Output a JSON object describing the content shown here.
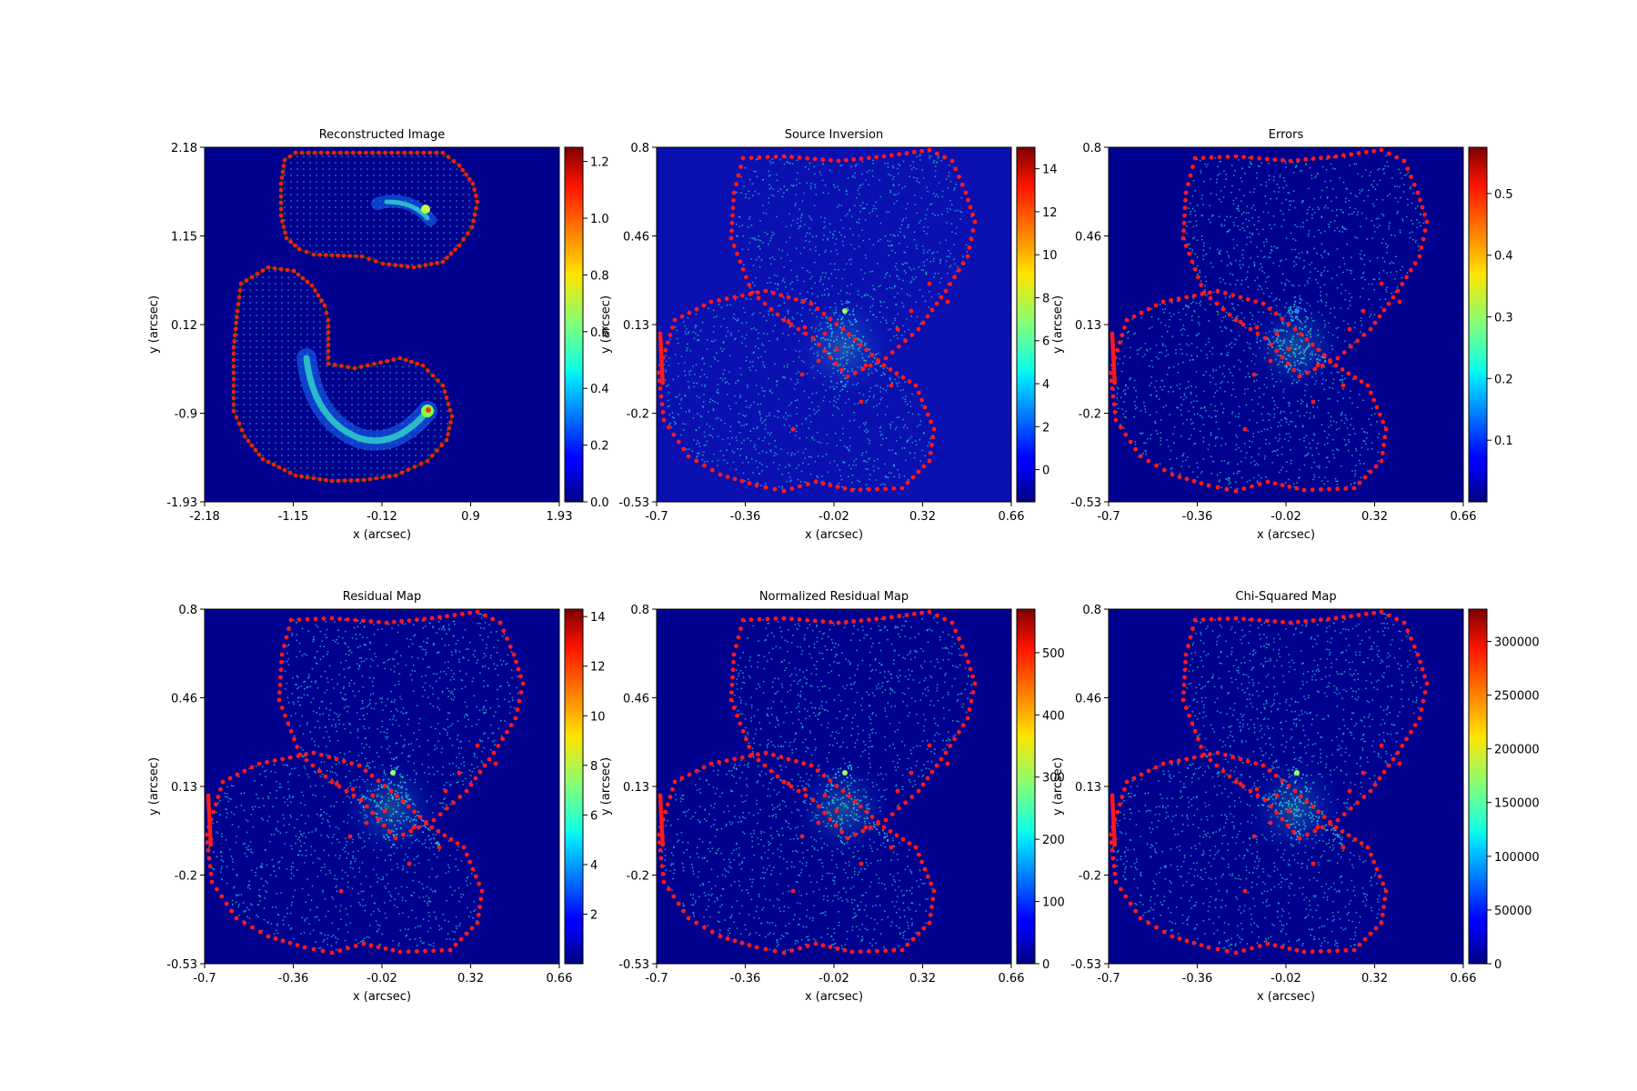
{
  "chart_data": [
    {
      "type": "heatmap",
      "title": "Reconstructed Image",
      "xlabel": "x (arcsec)",
      "ylabel": "y (arcsec)",
      "xticks": [
        "-2.18",
        "-1.15",
        "-0.12",
        "0.9",
        "1.93"
      ],
      "yticks": [
        "-1.93",
        "-0.9",
        "0.12",
        "1.15",
        "2.18"
      ],
      "xlim": [
        -2.18,
        1.93
      ],
      "ylim": [
        -1.93,
        2.18
      ],
      "colorbar": {
        "min": 0.0,
        "max": 1.25,
        "ticks": [
          "0.0",
          "0.2",
          "0.4",
          "0.6",
          "0.8",
          "1.0",
          "1.2"
        ]
      },
      "content": "arcs"
    },
    {
      "type": "heatmap",
      "title": "Source Inversion",
      "xlabel": "x (arcsec)",
      "ylabel": "y (arcsec)",
      "xticks": [
        "-0.7",
        "-0.36",
        "-0.02",
        "0.32",
        "0.66"
      ],
      "yticks": [
        "-0.53",
        "-0.2",
        "0.13",
        "0.46",
        "0.8"
      ],
      "xlim": [
        -0.7,
        0.66
      ],
      "ylim": [
        -0.53,
        0.8
      ],
      "colorbar": {
        "min": -1.5,
        "max": 15,
        "ticks": [
          "0",
          "2",
          "4",
          "6",
          "8",
          "10",
          "12",
          "14"
        ]
      },
      "content": "source"
    },
    {
      "type": "heatmap",
      "title": "Errors",
      "xlabel": "x (arcsec)",
      "ylabel": "y (arcsec)",
      "xticks": [
        "-0.7",
        "-0.36",
        "-0.02",
        "0.32",
        "0.66"
      ],
      "yticks": [
        "-0.53",
        "-0.2",
        "0.13",
        "0.46",
        "0.8"
      ],
      "xlim": [
        -0.7,
        0.66
      ],
      "ylim": [
        -0.53,
        0.8
      ],
      "colorbar": {
        "min": 0.0,
        "max": 0.575,
        "ticks": [
          "0.1",
          "0.2",
          "0.3",
          "0.4",
          "0.5"
        ]
      },
      "content": "source"
    },
    {
      "type": "heatmap",
      "title": "Residual Map",
      "xlabel": "x (arcsec)",
      "ylabel": "y (arcsec)",
      "xticks": [
        "-0.7",
        "-0.36",
        "-0.02",
        "0.32",
        "0.66"
      ],
      "yticks": [
        "-0.53",
        "-0.2",
        "0.13",
        "0.46",
        "0.8"
      ],
      "xlim": [
        -0.7,
        0.66
      ],
      "ylim": [
        -0.53,
        0.8
      ],
      "colorbar": {
        "min": 0.0,
        "max": 14.3,
        "ticks": [
          "2",
          "4",
          "6",
          "8",
          "10",
          "12",
          "14"
        ]
      },
      "content": "source"
    },
    {
      "type": "heatmap",
      "title": "Normalized Residual Map",
      "xlabel": "x (arcsec)",
      "ylabel": "y (arcsec)",
      "xticks": [
        "-0.7",
        "-0.36",
        "-0.02",
        "0.32",
        "0.66"
      ],
      "yticks": [
        "-0.53",
        "-0.2",
        "0.13",
        "0.46",
        "0.8"
      ],
      "xlim": [
        -0.7,
        0.66
      ],
      "ylim": [
        -0.53,
        0.8
      ],
      "colorbar": {
        "min": 0,
        "max": 570,
        "ticks": [
          "0",
          "100",
          "200",
          "300",
          "400",
          "500"
        ]
      },
      "content": "source"
    },
    {
      "type": "heatmap",
      "title": "Chi-Squared Map",
      "xlabel": "x (arcsec)",
      "ylabel": "y (arcsec)",
      "xticks": [
        "-0.7",
        "-0.36",
        "-0.02",
        "0.32",
        "0.66"
      ],
      "yticks": [
        "-0.53",
        "-0.2",
        "0.13",
        "0.46",
        "0.8"
      ],
      "xlim": [
        -0.7,
        0.66
      ],
      "ylim": [
        -0.53,
        0.8
      ],
      "colorbar": {
        "min": 0,
        "max": 330000,
        "ticks": [
          "0",
          "50000",
          "100000",
          "150000",
          "200000",
          "250000",
          "300000"
        ]
      },
      "content": "source"
    }
  ],
  "colors": {
    "background": "#00008f",
    "points": "#1fb5c9",
    "border": "#ff1a1a",
    "mask_edge": "#0a3a0a"
  }
}
